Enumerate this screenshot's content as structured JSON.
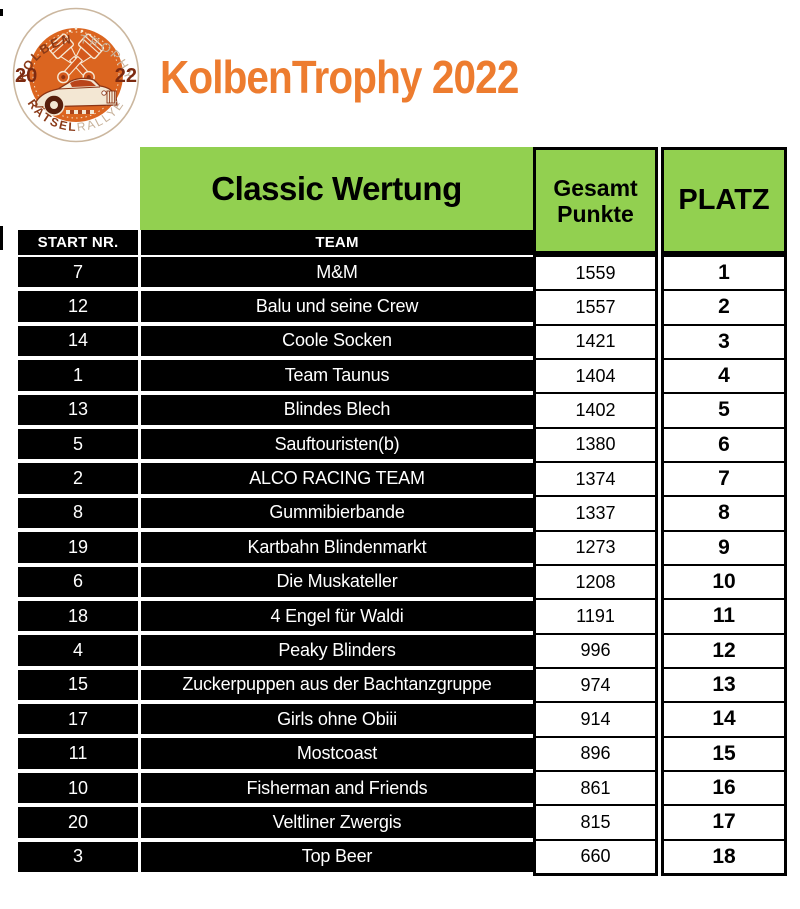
{
  "page": {
    "title": "KolbenTrophy 2022"
  },
  "logo": {
    "arc_top_primary": "KOLBEN ",
    "arc_top_secondary": "TROPHY",
    "year_left": "20",
    "year_right": "22",
    "arc_bottom_primary": "RÄTSEL",
    "arc_bottom_secondary": "RALLYE"
  },
  "table": {
    "section_title": "Classic Wertung",
    "col_start_nr": "START NR.",
    "col_team": "TEAM",
    "col_points_line1": "Gesamt",
    "col_points_line2": "Punkte",
    "col_platz": "PLATZ",
    "rows": [
      {
        "start_nr": "7",
        "team": "M&M",
        "points": "1559",
        "platz": "1"
      },
      {
        "start_nr": "12",
        "team": "Balu und seine Crew",
        "points": "1557",
        "platz": "2"
      },
      {
        "start_nr": "14",
        "team": "Coole Socken",
        "points": "1421",
        "platz": "3"
      },
      {
        "start_nr": "1",
        "team": "Team Taunus",
        "points": "1404",
        "platz": "4"
      },
      {
        "start_nr": "13",
        "team": "Blindes Blech",
        "points": "1402",
        "platz": "5"
      },
      {
        "start_nr": "5",
        "team": "Sauftouristen(b)",
        "points": "1380",
        "platz": "6"
      },
      {
        "start_nr": "2",
        "team": "ALCO RACING TEAM",
        "points": "1374",
        "platz": "7"
      },
      {
        "start_nr": "8",
        "team": "Gummibierbande",
        "points": "1337",
        "platz": "8"
      },
      {
        "start_nr": "19",
        "team": "Kartbahn Blindenmarkt",
        "points": "1273",
        "platz": "9"
      },
      {
        "start_nr": "6",
        "team": "Die Muskateller",
        "points": "1208",
        "platz": "10"
      },
      {
        "start_nr": "18",
        "team": "4 Engel für Waldi",
        "points": "1191",
        "platz": "11"
      },
      {
        "start_nr": "4",
        "team": "Peaky Blinders",
        "points": "996",
        "platz": "12"
      },
      {
        "start_nr": "15",
        "team": "Zuckerpuppen aus der Bachtanzgruppe",
        "points": "974",
        "platz": "13"
      },
      {
        "start_nr": "17",
        "team": "Girls ohne Obiii",
        "points": "914",
        "platz": "14"
      },
      {
        "start_nr": "11",
        "team": "Mostcoast",
        "points": "896",
        "platz": "15"
      },
      {
        "start_nr": "10",
        "team": "Fisherman and Friends",
        "points": "861",
        "platz": "16"
      },
      {
        "start_nr": "20",
        "team": "Veltliner Zwergis",
        "points": "815",
        "platz": "17"
      },
      {
        "start_nr": "3",
        "team": "Top Beer",
        "points": "660",
        "platz": "18"
      }
    ]
  },
  "colors": {
    "green": "#92D050",
    "orange": "#ED7C2F",
    "table_black": "#000000",
    "logo_orange": "#DB6520",
    "logo_dark_red": "#8A3A18",
    "logo_tan": "#C6B098"
  }
}
